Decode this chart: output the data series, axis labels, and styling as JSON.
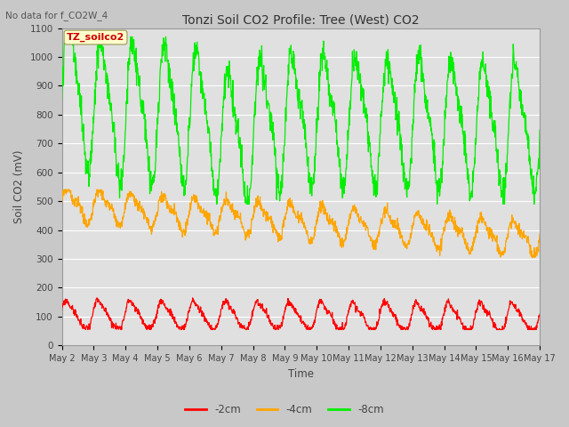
{
  "title": "Tonzi Soil CO2 Profile: Tree (West) CO2",
  "no_data_label": "No data for f_CO2W_4",
  "ylabel": "Soil CO2 (mV)",
  "xlabel": "Time",
  "watermark_label": "TZ_soilco2",
  "ylim": [
    0,
    1100
  ],
  "yticks": [
    0,
    100,
    200,
    300,
    400,
    500,
    600,
    700,
    800,
    900,
    1000,
    1100
  ],
  "tick_labels": [
    "May 2",
    "May 3",
    "May 4",
    "May 5",
    "May 6",
    "May 7",
    "May 8",
    "May 9",
    "May 10",
    "May 11",
    "May 12",
    "May 13",
    "May 14",
    "May 15",
    "May 16",
    "May 17"
  ],
  "color_red": "#ff0000",
  "color_orange": "#ffa500",
  "color_green": "#00ee00",
  "fig_bg": "#c8c8c8",
  "plot_bg": "#e0e0e0",
  "grid_color": "#ffffff",
  "n_points": 1440
}
